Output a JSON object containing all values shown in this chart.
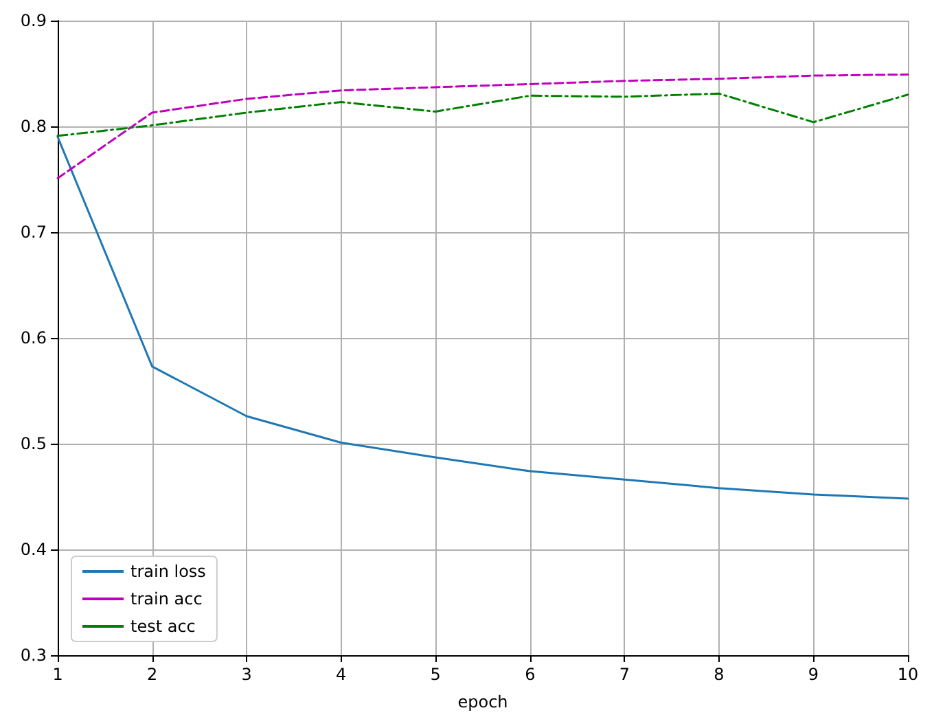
{
  "chart_data": {
    "type": "line",
    "xlabel": "epoch",
    "x": [
      1,
      2,
      3,
      4,
      5,
      6,
      7,
      8,
      9,
      10
    ],
    "series": [
      {
        "name": "train loss",
        "color": "#1f77b4",
        "line_style": "solid",
        "values": [
          0.79,
          0.573,
          0.526,
          0.501,
          0.487,
          0.474,
          0.466,
          0.458,
          0.452,
          0.448
        ]
      },
      {
        "name": "train acc",
        "color": "#bf00bf",
        "line_style": "dashed",
        "values": [
          0.751,
          0.813,
          0.826,
          0.834,
          0.837,
          0.84,
          0.843,
          0.845,
          0.848,
          0.849
        ]
      },
      {
        "name": "test acc",
        "color": "#008000",
        "line_style": "dashdot",
        "values": [
          0.791,
          0.801,
          0.813,
          0.823,
          0.814,
          0.829,
          0.828,
          0.831,
          0.804,
          0.83
        ]
      }
    ],
    "xlim": [
      1,
      10
    ],
    "xticks": [
      1,
      2,
      3,
      4,
      5,
      6,
      7,
      8,
      9,
      10
    ],
    "ylim": [
      0.3,
      0.9
    ],
    "yticks": [
      0.3,
      0.4,
      0.5,
      0.6,
      0.7,
      0.8,
      0.9
    ],
    "grid": true,
    "legend": "bottom left",
    "marker": "none"
  }
}
